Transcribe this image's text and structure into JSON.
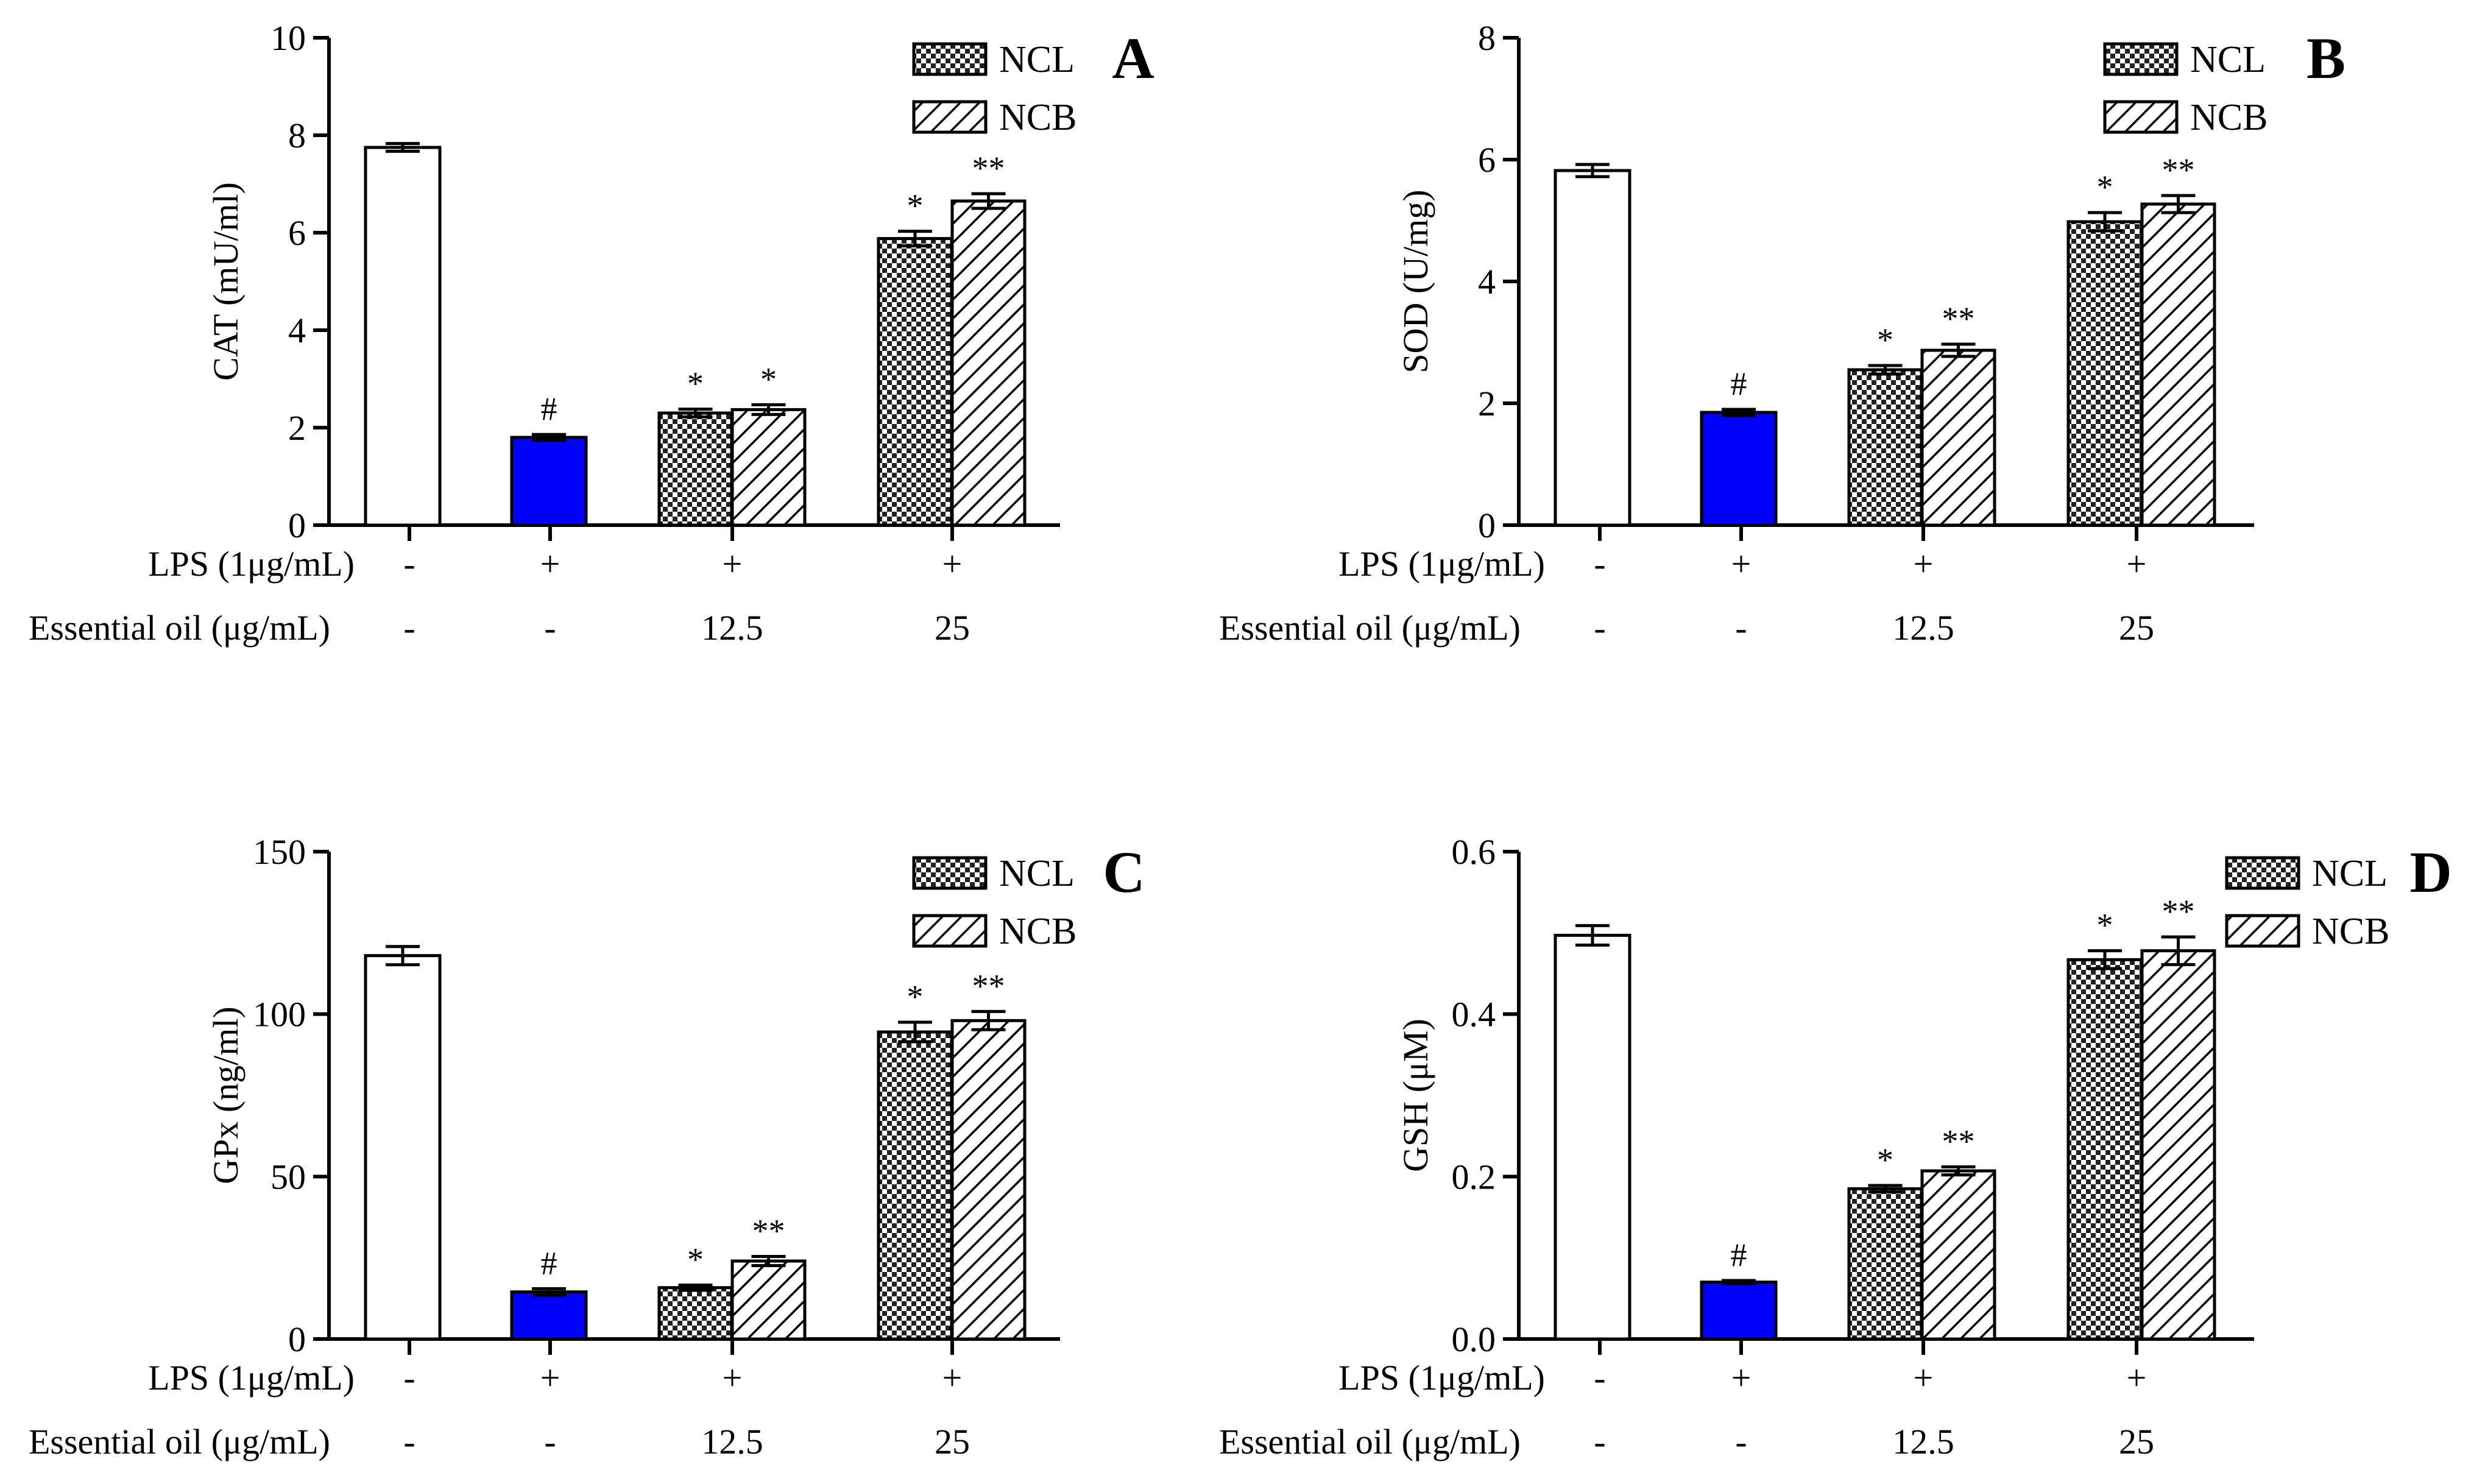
{
  "colors": {
    "control": "#ffffff",
    "lps": "#0000ff",
    "outline": "#000000"
  },
  "legend_entries": [
    {
      "name": "NCL",
      "pattern": "checker-pattern"
    },
    {
      "name": "NCB",
      "pattern": "hatch-pattern"
    }
  ],
  "row_labels": {
    "lps": "LPS (1μg/mL)",
    "oil": "Essential oil (μg/mL)"
  },
  "conditions": {
    "lps": [
      "-",
      "+",
      "+",
      "+"
    ],
    "oil": [
      "-",
      "-",
      "12.5",
      "25"
    ]
  },
  "chart_data": [
    {
      "type": "bar",
      "panel": "A",
      "ylabel": "CAT (mU/ml)",
      "ylim": [
        0,
        10
      ],
      "yticks": [
        "0",
        "2",
        "4",
        "6",
        "8",
        "10"
      ],
      "bars": [
        {
          "group": 0,
          "style": "control",
          "value": 7.75,
          "error": 0.08,
          "annotation": ""
        },
        {
          "group": 1,
          "style": "lps",
          "value": 1.8,
          "error": 0.06,
          "annotation": "#"
        },
        {
          "group": 2,
          "style": "NCL",
          "value": 2.3,
          "error": 0.08,
          "annotation": "*"
        },
        {
          "group": 2,
          "style": "NCB",
          "value": 2.37,
          "error": 0.1,
          "annotation": "*"
        },
        {
          "group": 3,
          "style": "NCL",
          "value": 5.88,
          "error": 0.15,
          "annotation": "*"
        },
        {
          "group": 3,
          "style": "NCB",
          "value": 6.65,
          "error": 0.15,
          "annotation": "**"
        }
      ]
    },
    {
      "type": "bar",
      "panel": "B",
      "ylabel": "SOD (U/mg)",
      "ylim": [
        0,
        8
      ],
      "yticks": [
        "0",
        "2",
        "4",
        "6",
        "8"
      ],
      "bars": [
        {
          "group": 0,
          "style": "control",
          "value": 5.82,
          "error": 0.1,
          "annotation": ""
        },
        {
          "group": 1,
          "style": "lps",
          "value": 1.85,
          "error": 0.05,
          "annotation": "#"
        },
        {
          "group": 2,
          "style": "NCL",
          "value": 2.55,
          "error": 0.07,
          "annotation": "*"
        },
        {
          "group": 2,
          "style": "NCB",
          "value": 2.87,
          "error": 0.1,
          "annotation": "**"
        },
        {
          "group": 3,
          "style": "NCL",
          "value": 4.98,
          "error": 0.15,
          "annotation": "*"
        },
        {
          "group": 3,
          "style": "NCB",
          "value": 5.27,
          "error": 0.14,
          "annotation": "**"
        }
      ]
    },
    {
      "type": "bar",
      "panel": "C",
      "ylabel": "GPx (ng/ml)",
      "ylim": [
        0,
        150
      ],
      "yticks": [
        "0",
        "50",
        "100",
        "150"
      ],
      "bars": [
        {
          "group": 0,
          "style": "control",
          "value": 118,
          "error": 2.8,
          "annotation": ""
        },
        {
          "group": 1,
          "style": "lps",
          "value": 14.5,
          "error": 1.0,
          "annotation": "#"
        },
        {
          "group": 2,
          "style": "NCL",
          "value": 15.8,
          "error": 0.8,
          "annotation": "*"
        },
        {
          "group": 2,
          "style": "NCB",
          "value": 24,
          "error": 1.4,
          "annotation": "**"
        },
        {
          "group": 3,
          "style": "NCL",
          "value": 94.5,
          "error": 3.0,
          "annotation": "*"
        },
        {
          "group": 3,
          "style": "NCB",
          "value": 98,
          "error": 2.8,
          "annotation": "**"
        }
      ]
    },
    {
      "type": "bar",
      "panel": "D",
      "ylabel": "GSH (μM)",
      "ylim": [
        0,
        0.6
      ],
      "yticks": [
        "0.0",
        "0.2",
        "0.4",
        "0.6"
      ],
      "bars": [
        {
          "group": 0,
          "style": "control",
          "value": 0.497,
          "error": 0.012,
          "annotation": ""
        },
        {
          "group": 1,
          "style": "lps",
          "value": 0.07,
          "error": 0.002,
          "annotation": "#"
        },
        {
          "group": 2,
          "style": "NCL",
          "value": 0.185,
          "error": 0.004,
          "annotation": "*"
        },
        {
          "group": 2,
          "style": "NCB",
          "value": 0.207,
          "error": 0.005,
          "annotation": "**"
        },
        {
          "group": 3,
          "style": "NCL",
          "value": 0.467,
          "error": 0.011,
          "annotation": "*"
        },
        {
          "group": 3,
          "style": "NCB",
          "value": 0.478,
          "error": 0.017,
          "annotation": "**"
        }
      ]
    }
  ]
}
